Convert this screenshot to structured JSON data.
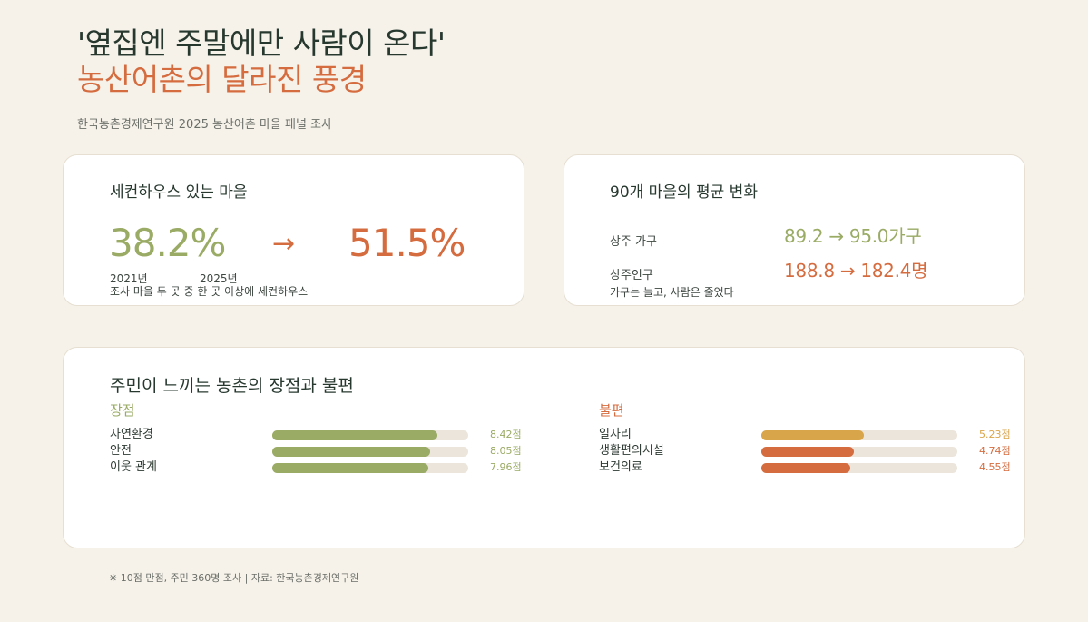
{
  "header": {
    "title_line1": "'옆집엔 주말에만 사람이 온다'",
    "title_line2": "농산어촌의 달라진 풍경",
    "subtitle": "한국농촌경제연구원 2025 농산어촌 마을 패널 조사"
  },
  "second_home": {
    "title": "세컨하우스 있는 마을",
    "value_2021": "38.2%",
    "arrow": "→",
    "value_2025": "51.5%",
    "year_2021": "2021년",
    "year_2025": "2025년",
    "note": "조사 마을 두 곳 중 한 곳 이상에 세컨하우스"
  },
  "village_avg": {
    "title": "90개 마을의 평균 변화",
    "households_label": "상주 가구",
    "households_value": "89.2 → 95.0가구",
    "population_label": "상주인구",
    "population_value": "188.8 → 182.4명",
    "note": "가구는 늘고, 사람은 줄었다"
  },
  "satisfaction": {
    "title": "주민이 느끼는 농촌의 장점과 불편",
    "pros_heading": "장점",
    "cons_heading": "불편"
  },
  "chart_data": [
    {
      "type": "bar",
      "title": "장점",
      "categories": [
        "자연환경",
        "안전",
        "이웃 관계"
      ],
      "values": [
        8.42,
        8.05,
        7.96
      ],
      "value_labels": [
        "8.42점",
        "8.05점",
        "7.96점"
      ],
      "xlim": [
        0,
        10
      ],
      "colors": [
        "#9aab65",
        "#9aab65",
        "#9aab65"
      ]
    },
    {
      "type": "bar",
      "title": "불편",
      "categories": [
        "일자리",
        "생활편의시설",
        "보건의료"
      ],
      "values": [
        5.23,
        4.74,
        4.55
      ],
      "value_labels": [
        "5.23점",
        "4.74점",
        "4.55점"
      ],
      "xlim": [
        0,
        10
      ],
      "colors": [
        "#d9a54a",
        "#d56c3f",
        "#d56c3f"
      ]
    }
  ],
  "footnote": "※ 10점 만점, 주민 360명 조사  |  자료: 한국농촌경제연구원",
  "colors": {
    "background": "#f6f2ea",
    "accent_green": "#9aab65",
    "accent_orange": "#d56c3f",
    "accent_yellow": "#d9a54a",
    "track": "#ebe5dc"
  }
}
